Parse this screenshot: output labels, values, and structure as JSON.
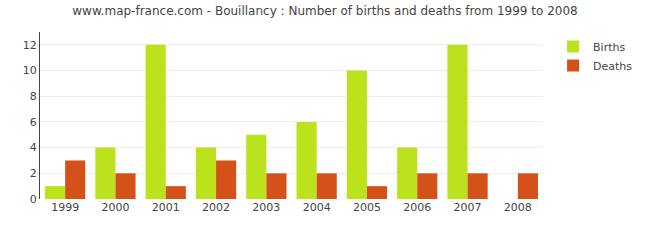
{
  "chart_data": {
    "type": "bar",
    "title": "www.map-france.com - Bouillancy : Number of births and deaths from 1999 to 2008",
    "categories": [
      "1999",
      "2000",
      "2001",
      "2002",
      "2003",
      "2004",
      "2005",
      "2006",
      "2007",
      "2008"
    ],
    "series": [
      {
        "name": "Births",
        "color": "#bbe21a",
        "values": [
          1,
          4,
          12,
          4,
          5,
          6,
          10,
          4,
          12,
          0
        ]
      },
      {
        "name": "Deaths",
        "color": "#d4521a",
        "values": [
          3,
          2,
          1,
          3,
          2,
          2,
          1,
          2,
          2,
          2
        ]
      }
    ],
    "ylim": [
      0,
      13
    ],
    "yticks": [
      0,
      2,
      4,
      6,
      8,
      10,
      12
    ],
    "grid": true,
    "legend": "upper right"
  }
}
